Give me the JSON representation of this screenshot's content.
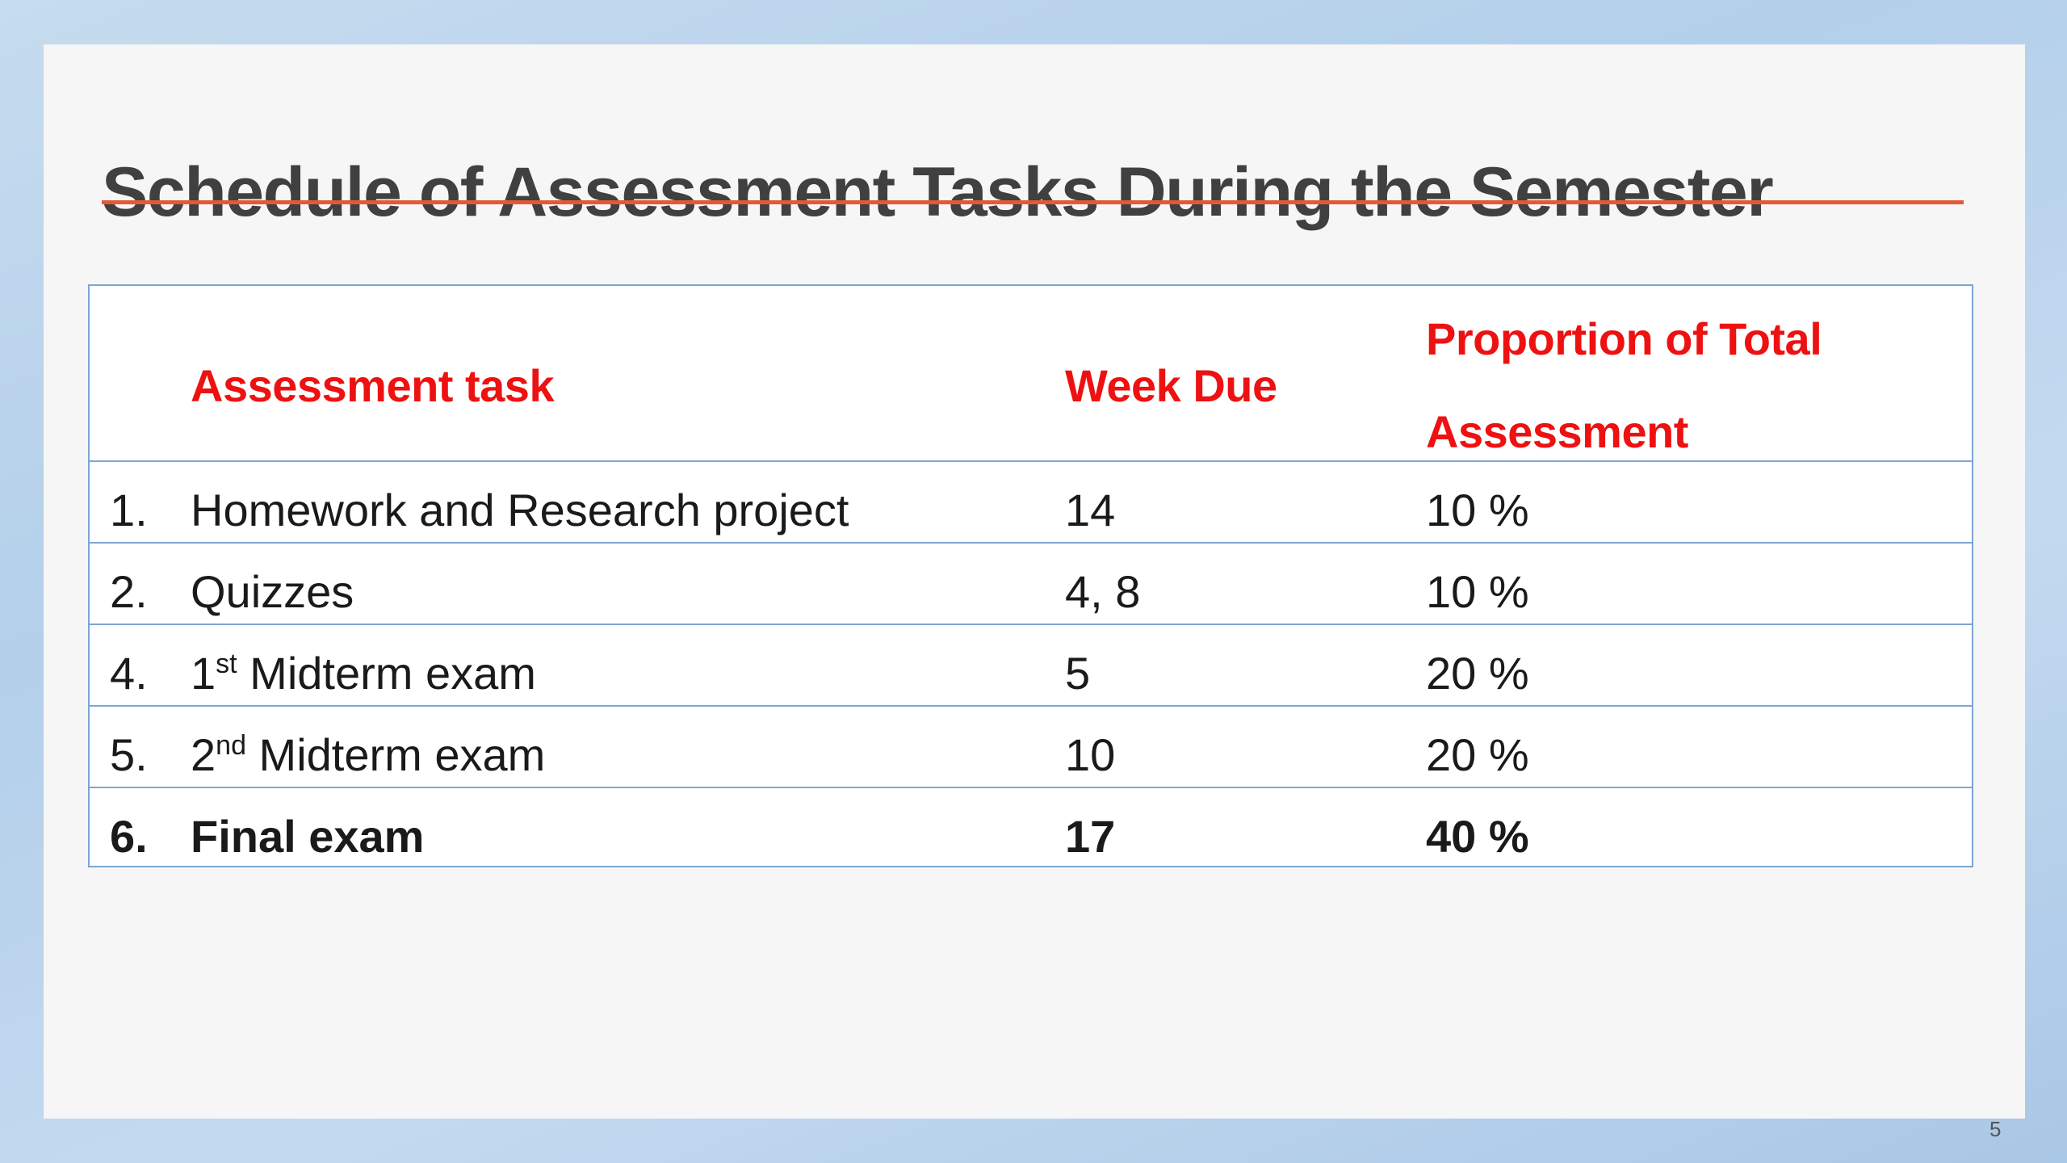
{
  "slide": {
    "title": "Schedule of Assessment Tasks During the Semester",
    "page_number": "5"
  },
  "table": {
    "headers": {
      "task": "Assessment task",
      "week": "Week Due",
      "proportion_line1": "Proportion of Total",
      "proportion_line2": "Assessment"
    },
    "rows": [
      {
        "num": "1.",
        "task_pre": "Homework and Research project",
        "task_sup": "",
        "task_post": "",
        "week": "14",
        "proportion": "10 %"
      },
      {
        "num": "2.",
        "task_pre": "Quizzes",
        "task_sup": "",
        "task_post": "",
        "week": "4, 8",
        "proportion": "10 %"
      },
      {
        "num": "4.",
        "task_pre": "1",
        "task_sup": "st",
        "task_post": " Midterm exam",
        "week": "5",
        "proportion": "20 %"
      },
      {
        "num": "5.",
        "task_pre": "2",
        "task_sup": "nd",
        "task_post": " Midterm exam",
        "week": "10",
        "proportion": "20 %"
      },
      {
        "num": "6.",
        "task_pre": "Final exam",
        "task_sup": "",
        "task_post": "",
        "week": "17",
        "proportion": "40 %"
      }
    ]
  },
  "colors": {
    "header_text": "#ee1111",
    "title_text": "#404040",
    "title_underline": "#e05a3a",
    "table_border": "#7ea5d4",
    "slide_background": "#f6f6f6"
  }
}
